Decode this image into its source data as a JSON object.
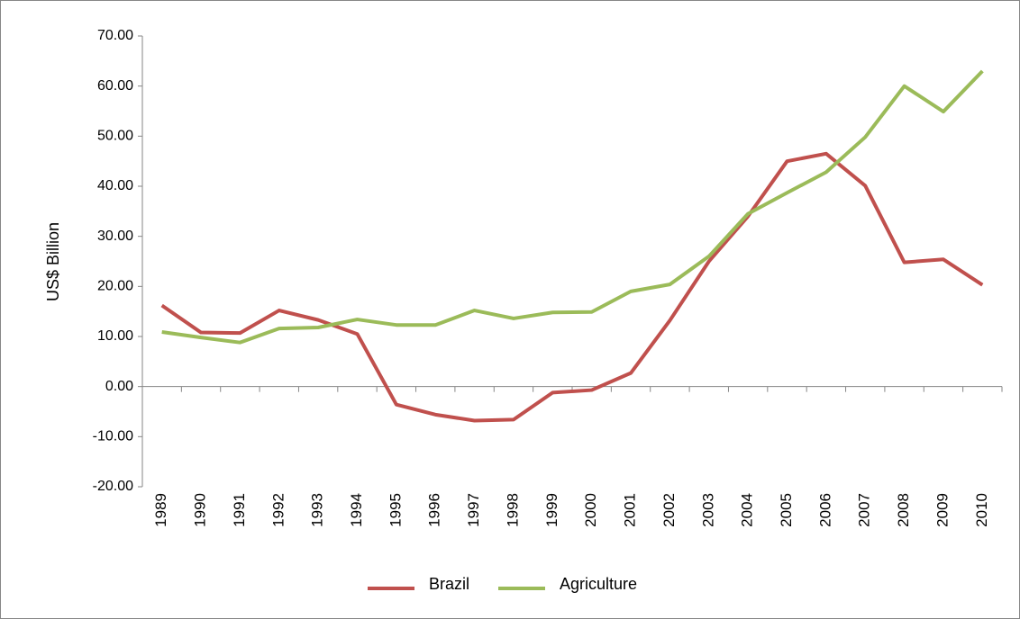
{
  "chart_data": {
    "type": "line",
    "y_label": "US$ Billion",
    "categories": [
      "1989",
      "1990",
      "1991",
      "1992",
      "1993",
      "1994",
      "1995",
      "1996",
      "1997",
      "1998",
      "1999",
      "2000",
      "2001",
      "2002",
      "2003",
      "2004",
      "2005",
      "2006",
      "2007",
      "2008",
      "2009",
      "2010"
    ],
    "series": [
      {
        "name": "Brazil",
        "color": "#c0504d",
        "values": [
          16.2,
          10.8,
          10.7,
          15.2,
          13.3,
          10.5,
          -3.6,
          -5.6,
          -6.8,
          -6.6,
          -1.2,
          -0.7,
          2.7,
          13.2,
          25,
          34,
          45,
          46.5,
          40.1,
          24.8,
          25.4,
          20.3
        ]
      },
      {
        "name": "Agriculture",
        "color": "#9bbb59",
        "values": [
          10.9,
          9.8,
          8.8,
          11.6,
          11.8,
          13.4,
          12.3,
          12.3,
          15.2,
          13.6,
          14.8,
          14.9,
          19,
          20.4,
          26,
          34.5,
          38.7,
          42.8,
          49.8,
          60,
          54.9,
          63
        ]
      }
    ],
    "ylim": [
      -20,
      70
    ],
    "yticks": [
      {
        "value": -20,
        "label": "-20.00"
      },
      {
        "value": -10,
        "label": "-10.00"
      },
      {
        "value": 0,
        "label": "0.00"
      },
      {
        "value": 10,
        "label": "10.00"
      },
      {
        "value": 20,
        "label": "20.00"
      },
      {
        "value": 30,
        "label": "30.00"
      },
      {
        "value": 40,
        "label": "40.00"
      },
      {
        "value": 50,
        "label": "50.00"
      },
      {
        "value": 60,
        "label": "60.00"
      },
      {
        "value": 70,
        "label": "70.00"
      }
    ],
    "legend": "bottom"
  }
}
